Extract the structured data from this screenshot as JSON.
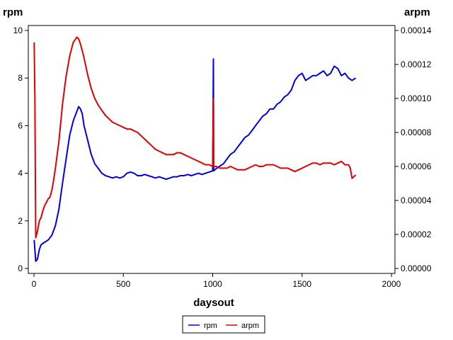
{
  "chart_data": {
    "type": "line",
    "title": "",
    "xlabel": "daysout",
    "ylabel": "rpm",
    "y2label": "arpm",
    "xlim": [
      0,
      2000
    ],
    "ylim": [
      0,
      10
    ],
    "y2lim": [
      0,
      0.00014
    ],
    "x_ticks": [
      0,
      500,
      1000,
      1500,
      2000
    ],
    "x_tick_labels": [
      "0",
      "500",
      "1000",
      "1500",
      "2000"
    ],
    "y_ticks": [
      0,
      2,
      4,
      6,
      8,
      10
    ],
    "y_tick_labels": [
      "0",
      "2",
      "4",
      "6",
      "8",
      "10"
    ],
    "y2_ticks": [
      0,
      2e-05,
      4e-05,
      6e-05,
      8e-05,
      0.0001,
      0.00012,
      0.00014
    ],
    "y2_tick_labels": [
      "0.00000",
      "0.00002",
      "0.00004",
      "0.00006",
      "0.00008",
      "0.00010",
      "0.00012",
      "0.00014"
    ],
    "grid": false,
    "legend_position": "bottom-center",
    "series": [
      {
        "name": "rpm",
        "axis": "left",
        "color": "#0000e0",
        "x": [
          1,
          10,
          20,
          30,
          40,
          60,
          80,
          100,
          120,
          140,
          160,
          180,
          200,
          220,
          240,
          250,
          260,
          270,
          280,
          300,
          320,
          340,
          360,
          380,
          400,
          420,
          440,
          460,
          480,
          500,
          520,
          540,
          560,
          580,
          600,
          620,
          640,
          660,
          680,
          700,
          720,
          740,
          760,
          780,
          800,
          820,
          840,
          860,
          880,
          900,
          920,
          940,
          960,
          980,
          1000,
          1004,
          1005,
          1006,
          1020,
          1040,
          1060,
          1080,
          1100,
          1120,
          1140,
          1160,
          1180,
          1200,
          1220,
          1240,
          1260,
          1280,
          1300,
          1320,
          1340,
          1360,
          1380,
          1400,
          1420,
          1440,
          1460,
          1480,
          1500,
          1520,
          1540,
          1560,
          1580,
          1600,
          1620,
          1640,
          1660,
          1680,
          1700,
          1720,
          1740,
          1760,
          1780,
          1800
        ],
        "y": [
          1.2,
          0.3,
          0.4,
          0.8,
          1.0,
          1.1,
          1.2,
          1.4,
          1.8,
          2.5,
          3.6,
          4.6,
          5.6,
          6.2,
          6.6,
          6.8,
          6.7,
          6.5,
          6.0,
          5.4,
          4.8,
          4.4,
          4.2,
          4.0,
          3.9,
          3.85,
          3.8,
          3.85,
          3.8,
          3.85,
          4.0,
          4.05,
          4.0,
          3.9,
          3.9,
          3.95,
          3.9,
          3.85,
          3.8,
          3.85,
          3.8,
          3.75,
          3.8,
          3.85,
          3.85,
          3.9,
          3.9,
          3.95,
          3.9,
          3.95,
          4.0,
          3.95,
          4.0,
          4.05,
          4.1,
          8.8,
          4.1,
          4.1,
          4.2,
          4.3,
          4.4,
          4.6,
          4.8,
          4.9,
          5.1,
          5.3,
          5.5,
          5.6,
          5.8,
          6.0,
          6.2,
          6.4,
          6.5,
          6.7,
          6.7,
          6.9,
          7.0,
          7.2,
          7.3,
          7.5,
          7.9,
          8.1,
          8.2,
          7.9,
          8.0,
          8.1,
          8.1,
          8.2,
          8.3,
          8.1,
          8.2,
          8.5,
          8.4,
          8.1,
          8.2,
          8.0,
          7.9,
          8.0
        ]
      },
      {
        "name": "arpm",
        "axis": "right",
        "color": "#e00000",
        "x": [
          1,
          5,
          10,
          20,
          30,
          40,
          50,
          60,
          70,
          80,
          90,
          100,
          110,
          120,
          140,
          160,
          180,
          200,
          220,
          240,
          250,
          260,
          270,
          280,
          300,
          320,
          340,
          360,
          380,
          400,
          420,
          440,
          460,
          480,
          500,
          520,
          540,
          560,
          580,
          600,
          620,
          640,
          660,
          680,
          700,
          720,
          740,
          760,
          780,
          800,
          820,
          840,
          860,
          880,
          900,
          920,
          940,
          960,
          980,
          1000,
          1004,
          1005,
          1006,
          1020,
          1040,
          1060,
          1080,
          1100,
          1120,
          1140,
          1160,
          1180,
          1200,
          1220,
          1240,
          1260,
          1280,
          1300,
          1320,
          1340,
          1360,
          1380,
          1400,
          1420,
          1440,
          1460,
          1480,
          1500,
          1520,
          1540,
          1560,
          1580,
          1600,
          1620,
          1640,
          1660,
          1680,
          1700,
          1720,
          1740,
          1760,
          1770,
          1780,
          1800
        ],
        "y": [
          0.000133,
          0.0001,
          1.8e-05,
          2.2e-05,
          2.8e-05,
          3e-05,
          3.4e-05,
          3.7e-05,
          3.9e-05,
          4.1e-05,
          4.2e-05,
          4.6e-05,
          5.2e-05,
          5.9e-05,
          7.5e-05,
          9.7e-05,
          0.000113,
          0.000125,
          0.000133,
          0.000136,
          0.000135,
          0.000132,
          0.000128,
          0.000124,
          0.000114,
          0.000106,
          0.0001,
          9.6e-05,
          9.3e-05,
          9e-05,
          8.8e-05,
          8.6e-05,
          8.5e-05,
          8.4e-05,
          8.3e-05,
          8.2e-05,
          8.2e-05,
          8.1e-05,
          8e-05,
          7.8e-05,
          7.6e-05,
          7.4e-05,
          7.2e-05,
          7e-05,
          6.9e-05,
          6.8e-05,
          6.7e-05,
          6.7e-05,
          6.7e-05,
          6.8e-05,
          6.8e-05,
          6.7e-05,
          6.6e-05,
          6.5e-05,
          6.4e-05,
          6.3e-05,
          6.2e-05,
          6.1e-05,
          6.1e-05,
          6e-05,
          0.0001,
          6e-05,
          6e-05,
          6e-05,
          5.9e-05,
          5.9e-05,
          5.9e-05,
          6e-05,
          5.9e-05,
          5.8e-05,
          5.8e-05,
          5.8e-05,
          5.9e-05,
          6e-05,
          6.1e-05,
          6e-05,
          6e-05,
          6.1e-05,
          6.1e-05,
          6.1e-05,
          6e-05,
          5.9e-05,
          5.9e-05,
          5.9e-05,
          5.8e-05,
          5.7e-05,
          5.8e-05,
          5.9e-05,
          6e-05,
          6.1e-05,
          6.2e-05,
          6.2e-05,
          6.1e-05,
          6.2e-05,
          6.2e-05,
          6.2e-05,
          6.1e-05,
          6.2e-05,
          6.3e-05,
          6.1e-05,
          6.1e-05,
          5.9e-05,
          5.3e-05,
          5.5e-05
        ]
      }
    ],
    "legend": {
      "entries": [
        {
          "label": "rpm",
          "color": "#0000e0"
        },
        {
          "label": "arpm",
          "color": "#e00000"
        }
      ]
    }
  }
}
